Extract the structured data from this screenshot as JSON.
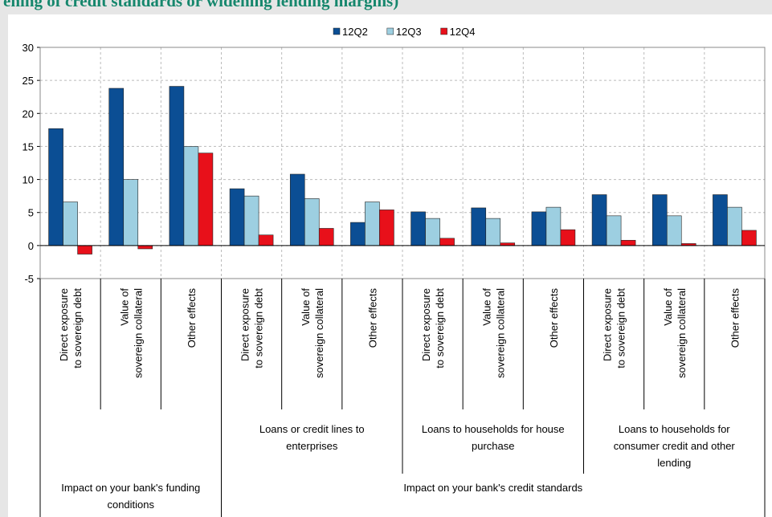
{
  "chart_data": {
    "type": "bar",
    "title": "ening of credit standards or widening lending margins)",
    "categories": [
      [
        "Direct exposure",
        "to sovereign debt"
      ],
      [
        "Value of",
        "sovereign collateral"
      ],
      [
        "Other effects"
      ],
      [
        "Direct exposure",
        "to sovereign debt"
      ],
      [
        "Value of",
        "sovereign collateral"
      ],
      [
        "Other effects"
      ],
      [
        "Direct exposure",
        "to sovereign debt"
      ],
      [
        "Value of",
        "sovereign collateral"
      ],
      [
        "Other effects"
      ],
      [
        "Direct exposure",
        "to sovereign debt"
      ],
      [
        "Value of",
        "sovereign collateral"
      ],
      [
        "Other effects"
      ]
    ],
    "subgroups": [
      {
        "label": "Loans or credit lines to enterprises",
        "start": 3,
        "end": 5
      },
      {
        "label": "Loans to households for house purchase",
        "start": 6,
        "end": 8
      },
      {
        "label": "Loans to households for consumer credit and other lending",
        "start": 9,
        "end": 11
      }
    ],
    "groups": [
      {
        "label": "Impact on your bank's funding conditions",
        "start": 0,
        "end": 2
      },
      {
        "label": "Impact on your bank's credit standards",
        "start": 3,
        "end": 11
      }
    ],
    "series": [
      {
        "name": "12Q2",
        "color": "#0b4e94",
        "values": [
          17.7,
          23.8,
          24.1,
          8.6,
          10.8,
          3.5,
          5.1,
          5.7,
          5.1,
          7.7,
          7.7,
          7.7
        ]
      },
      {
        "name": "12Q3",
        "color": "#9dcfe1",
        "values": [
          6.6,
          10.0,
          15.0,
          7.5,
          7.1,
          6.6,
          4.1,
          4.1,
          5.8,
          4.5,
          4.5,
          5.8
        ]
      },
      {
        "name": "12Q4",
        "color": "#e8101a",
        "values": [
          -1.3,
          -0.5,
          14.0,
          1.6,
          2.6,
          5.4,
          1.1,
          0.4,
          2.4,
          0.8,
          0.3,
          2.3
        ]
      }
    ],
    "ylim": [
      -5,
      30
    ],
    "yticks": [
      -5,
      0,
      5,
      10,
      15,
      20,
      25,
      30
    ],
    "grid": true,
    "legend": "top"
  }
}
